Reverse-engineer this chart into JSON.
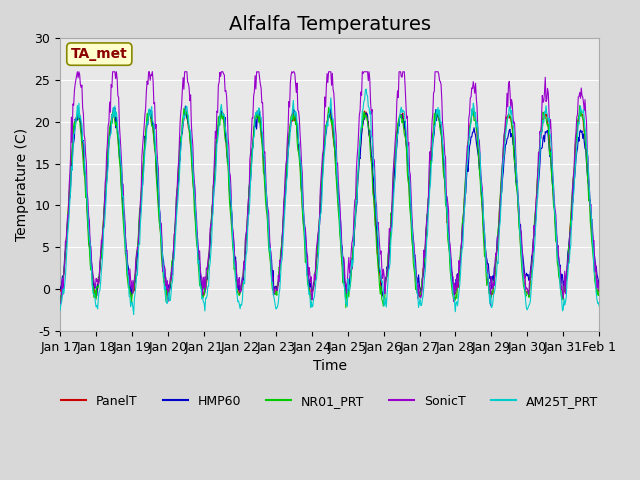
{
  "title": "Alfalfa Temperatures",
  "xlabel": "Time",
  "ylabel": "Temperature (C)",
  "ylim": [
    -5,
    30
  ],
  "xlim": [
    0,
    15
  ],
  "xtick_labels": [
    "Jan 17",
    "Jan 18",
    "Jan 19",
    "Jan 20",
    "Jan 21",
    "Jan 22",
    "Jan 23",
    "Jan 24",
    "Jan 25",
    "Jan 26",
    "Jan 27",
    "Jan 28",
    "Jan 29",
    "Jan 30",
    "Jan 31",
    "Feb 1"
  ],
  "ytick_labels": [
    "-5",
    "0",
    "5",
    "10",
    "15",
    "20",
    "25",
    "30"
  ],
  "ytick_values": [
    -5,
    0,
    5,
    10,
    15,
    20,
    25,
    30
  ],
  "colors": {
    "PanelT": "#cc0000",
    "HMP60": "#0000cc",
    "NR01_PRT": "#00cc00",
    "SonicT": "#9900cc",
    "AM25T_PRT": "#00cccc"
  },
  "legend_labels": [
    "PanelT",
    "HMP60",
    "NR01_PRT",
    "SonicT",
    "AM25T_PRT"
  ],
  "annotation_text": "TA_met",
  "annotation_color": "#8b0000",
  "annotation_bg": "#ffffcc",
  "background_color": "#e8e8e8",
  "plot_bg": "#e8e8e8",
  "title_fontsize": 14,
  "axis_fontsize": 10,
  "tick_fontsize": 9
}
